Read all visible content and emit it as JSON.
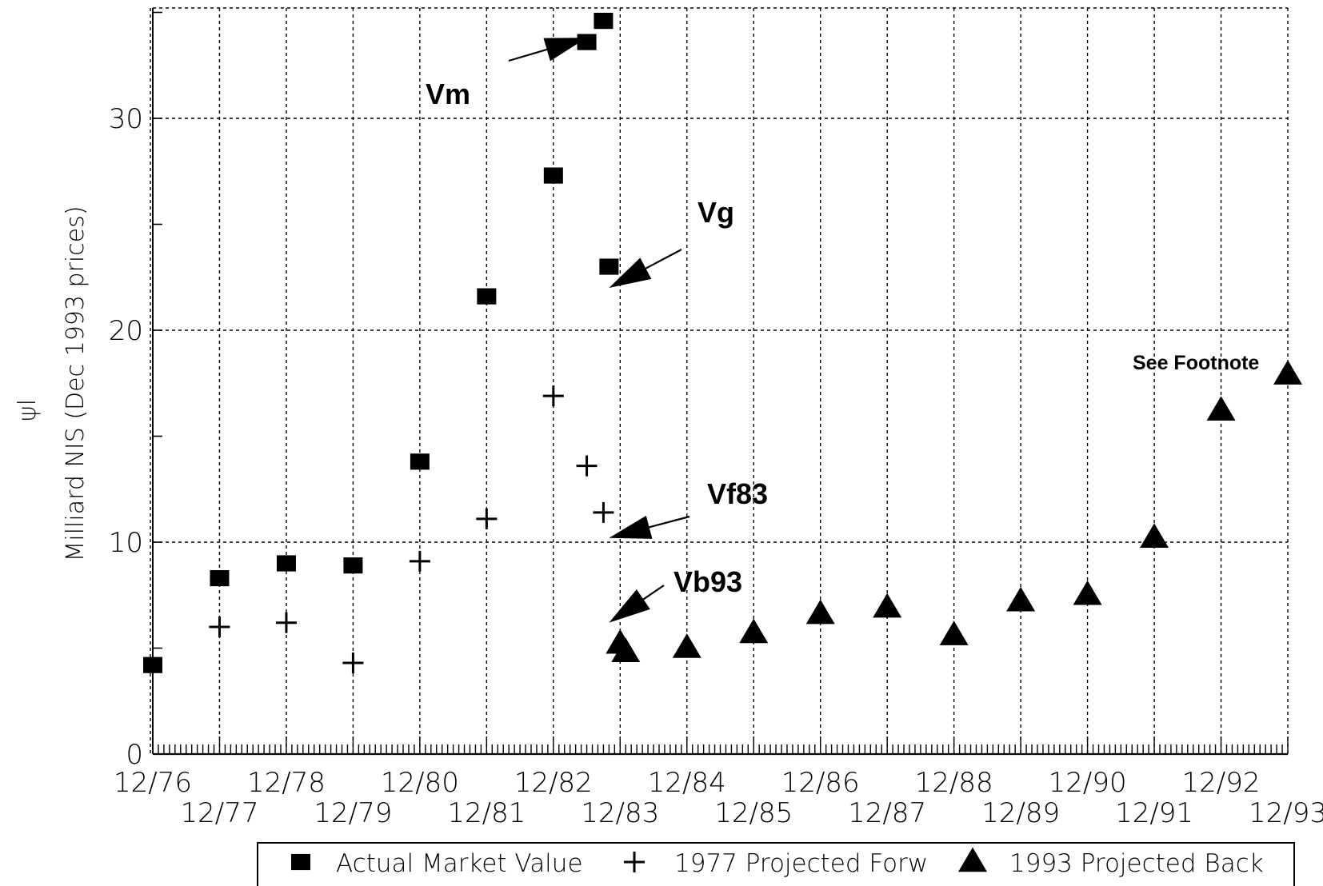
{
  "chart_data": {
    "type": "scatter",
    "title": "",
    "xlabel": "",
    "ylabel": "Milliard NIS (Dec 1993 prices)",
    "side_mark": "ψl",
    "x_range": [
      "12/76",
      "12/93"
    ],
    "ylim": [
      0,
      35
    ],
    "y_ticks": [
      0,
      10,
      20,
      30
    ],
    "x_tick_labels": [
      "12/76",
      "12/77",
      "12/78",
      "12/79",
      "12/80",
      "12/81",
      "12/82",
      "12/83",
      "12/84",
      "12/85",
      "12/86",
      "12/87",
      "12/88",
      "12/89",
      "12/90",
      "12/91",
      "12/92",
      "12/93"
    ],
    "grid": true,
    "legend_position": "bottom",
    "series": [
      {
        "name": "Actual Market Value",
        "marker": "square",
        "points": [
          {
            "x": "12/76",
            "y": 4.2
          },
          {
            "x": "12/77",
            "y": 8.3
          },
          {
            "x": "12/78",
            "y": 9.0
          },
          {
            "x": "12/79",
            "y": 8.9
          },
          {
            "x": "12/80",
            "y": 13.8
          },
          {
            "x": "12/81",
            "y": 21.6
          },
          {
            "x": "12/82",
            "y": 27.3
          },
          {
            "x": "06/83",
            "y": 33.6
          },
          {
            "x": "09/83",
            "y": 34.6
          },
          {
            "x": "10/83",
            "y": 23.0
          }
        ]
      },
      {
        "name": "1977 Projected Forw",
        "marker": "plus",
        "points": [
          {
            "x": "12/77",
            "y": 6.0
          },
          {
            "x": "12/78",
            "y": 6.2
          },
          {
            "x": "12/79",
            "y": 4.3
          },
          {
            "x": "12/80",
            "y": 9.1
          },
          {
            "x": "12/81",
            "y": 11.1
          },
          {
            "x": "12/82",
            "y": 16.9
          },
          {
            "x": "06/83",
            "y": 13.6
          },
          {
            "x": "09/83",
            "y": 11.4
          }
        ]
      },
      {
        "name": "1993 Projected Back",
        "marker": "triangle",
        "points": [
          {
            "x": "12/83",
            "y": 5.2
          },
          {
            "x": "01/84",
            "y": 4.8
          },
          {
            "x": "12/84",
            "y": 5.0
          },
          {
            "x": "12/85",
            "y": 5.7
          },
          {
            "x": "12/86",
            "y": 6.6
          },
          {
            "x": "12/87",
            "y": 6.9
          },
          {
            "x": "12/88",
            "y": 5.6
          },
          {
            "x": "12/89",
            "y": 7.2
          },
          {
            "x": "12/90",
            "y": 7.5
          },
          {
            "x": "12/91",
            "y": 10.2
          },
          {
            "x": "12/92",
            "y": 16.2
          },
          {
            "x": "12/93",
            "y": 17.9
          }
        ]
      }
    ],
    "annotations": [
      {
        "text": "Vm",
        "arrow_to": {
          "x": "06/83",
          "y": 33.8
        }
      },
      {
        "text": "Vg",
        "arrow_to": {
          "x": "10/83",
          "y": 22.0
        }
      },
      {
        "text": "Vf83",
        "arrow_to": {
          "x": "10/83",
          "y": 10.2
        }
      },
      {
        "text": "Vb93",
        "arrow_to": {
          "x": "10/83",
          "y": 6.2
        }
      },
      {
        "text": "See Footnote",
        "arrow_to": null
      }
    ]
  }
}
